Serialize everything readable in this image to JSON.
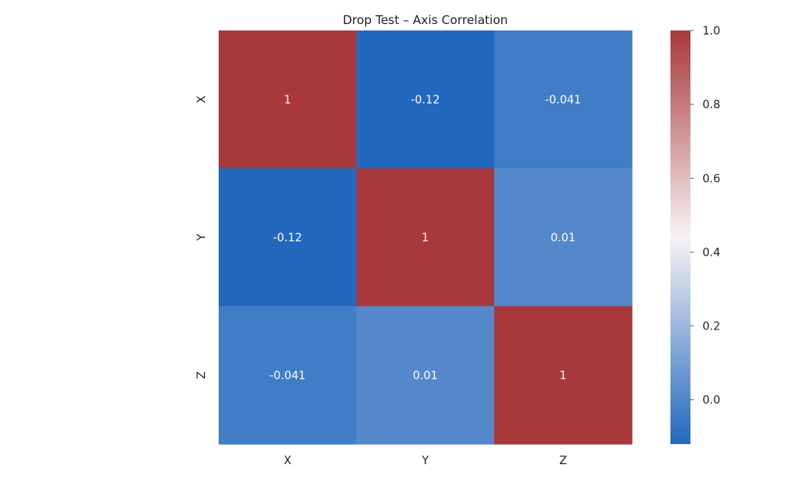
{
  "chart_data": {
    "type": "heatmap",
    "title": "Drop Test – Axis Correlation",
    "x_categories": [
      "X",
      "Y",
      "Z"
    ],
    "y_categories": [
      "X",
      "Y",
      "Z"
    ],
    "values": [
      [
        1,
        -0.12,
        -0.041
      ],
      [
        -0.12,
        1,
        0.01
      ],
      [
        -0.041,
        0.01,
        1
      ]
    ],
    "cell_labels": [
      [
        "1",
        "-0.12",
        "-0.041"
      ],
      [
        "-0.12",
        "1",
        "0.01"
      ],
      [
        "-0.041",
        "0.01",
        "1"
      ]
    ],
    "colorbar": {
      "vmin": -0.12,
      "vmax": 1.0,
      "ticks": [
        0.0,
        0.2,
        0.4,
        0.6,
        0.8,
        1.0
      ],
      "tick_labels": [
        "0.0",
        "0.2",
        "0.4",
        "0.6",
        "0.8",
        "1.0"
      ],
      "colors": [
        "#2368bf",
        "#f7f3f3",
        "#a8383b"
      ]
    },
    "xlabel": "",
    "ylabel": "",
    "grid": false
  }
}
